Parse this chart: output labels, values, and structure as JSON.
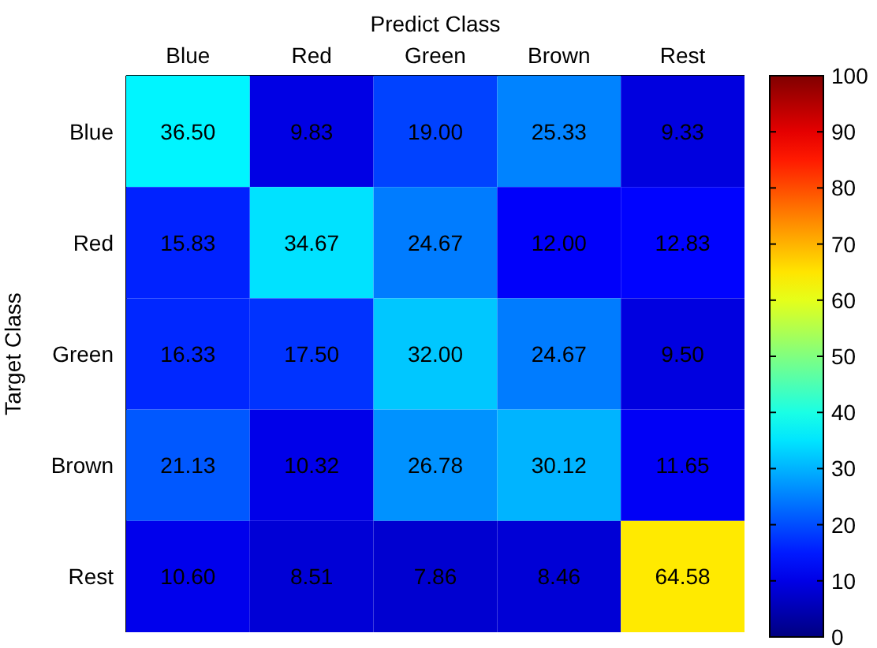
{
  "chart_data": {
    "type": "heatmap",
    "xlabel": "Predict Class",
    "ylabel": "Target Class",
    "categories": [
      "Blue",
      "Red",
      "Green",
      "Brown",
      "Rest"
    ],
    "y_categories": [
      "Blue",
      "Red",
      "Green",
      "Brown",
      "Rest"
    ],
    "cells": [
      [
        36.5,
        9.83,
        19.0,
        25.33,
        9.33
      ],
      [
        15.83,
        34.67,
        24.67,
        12.0,
        12.83
      ],
      [
        16.33,
        17.5,
        32.0,
        24.67,
        9.5
      ],
      [
        21.13,
        10.32,
        26.78,
        30.12,
        11.65
      ],
      [
        10.6,
        8.51,
        7.86,
        8.46,
        64.58
      ]
    ],
    "cell_labels": [
      [
        "36.50",
        "9.83",
        "19.00",
        "25.33",
        "9.33"
      ],
      [
        "15.83",
        "34.67",
        "24.67",
        "12.00",
        "12.83"
      ],
      [
        "16.33",
        "17.50",
        "32.00",
        "24.67",
        "9.50"
      ],
      [
        "21.13",
        "10.32",
        "26.78",
        "30.12",
        "11.65"
      ],
      [
        "10.60",
        "8.51",
        "7.86",
        "8.46",
        "64.58"
      ]
    ],
    "clim": [
      0,
      100
    ],
    "cticks": [
      0,
      10,
      20,
      30,
      40,
      50,
      60,
      70,
      80,
      90,
      100
    ]
  }
}
